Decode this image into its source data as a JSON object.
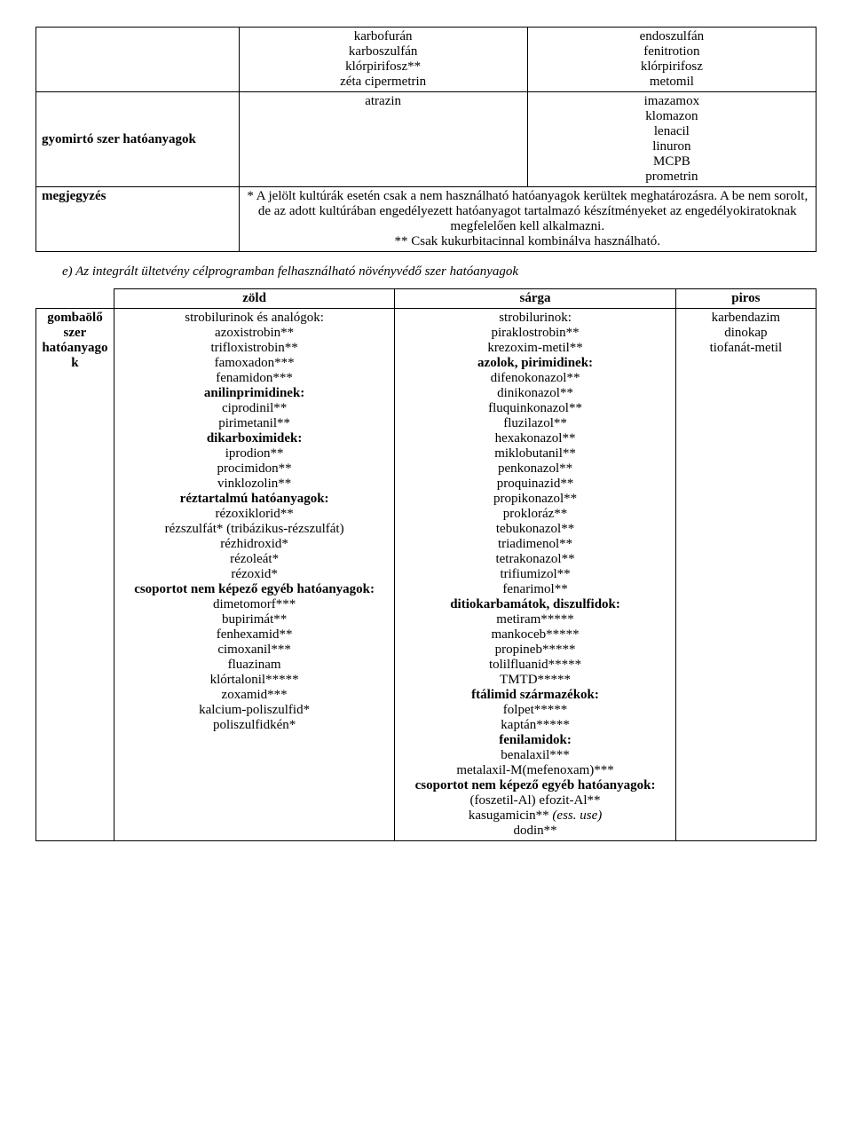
{
  "table1": {
    "row1": {
      "left": "",
      "mid": [
        "karbofurán",
        "karboszulfán",
        "klórpirifosz**",
        "zéta cipermetrin"
      ],
      "right": [
        "endoszulfán",
        "fenitrotion",
        "klórpirifosz",
        "metomil"
      ]
    },
    "row2": {
      "left": "gyomirtó szer hatóanyagok",
      "mid": [
        "atrazin"
      ],
      "right": [
        "imazamox",
        "klomazon",
        "lenacil",
        "linuron",
        "MCPB",
        "prometrin"
      ]
    },
    "row3": {
      "left": "megjegyzés",
      "note_prefix": "* ",
      "note_body1": "A jelölt kultúrák esetén csak a nem használható hatóanyagok kerültek meghatározásra. A be nem sorolt, de az adott kultúrában engedélyezett hatóanyagot tartalmazó készítményeket az engedélyokiratoknak megfelelően kell alkalmazni.",
      "note_body2": "** Csak kukurbitacinnal kombinálva használható."
    }
  },
  "section_title": "e) Az integrált ültetvény célprogramban felhasználható növényvédő szer hatóanyagok",
  "table2": {
    "headers": {
      "zold": "zöld",
      "sarga": "sárga",
      "piros": "piros"
    },
    "left_label": "gombaölő szer hatóanyago k",
    "zold": [
      {
        "t": "strobilurinok és analógok:",
        "b": false
      },
      {
        "t": "azoxistrobin**",
        "b": false
      },
      {
        "t": "trifloxistrobin**",
        "b": false
      },
      {
        "t": "famoxadon***",
        "b": false
      },
      {
        "t": "fenamidon***",
        "b": false
      },
      {
        "t": "anilinprimidinek:",
        "b": true
      },
      {
        "t": "ciprodinil**",
        "b": false
      },
      {
        "t": "pirimetanil**",
        "b": false
      },
      {
        "t": "dikarboximidek:",
        "b": true
      },
      {
        "t": "iprodion**",
        "b": false
      },
      {
        "t": "procimidon**",
        "b": false
      },
      {
        "t": "vinklozolin**",
        "b": false
      },
      {
        "t": "réztartalmú hatóanyagok:",
        "b": true
      },
      {
        "t": "rézoxiklorid**",
        "b": false
      },
      {
        "t": "rézszulfát* (tribázikus-rézszulfát)",
        "b": false
      },
      {
        "t": "rézhidroxid*",
        "b": false
      },
      {
        "t": "rézoleát*",
        "b": false
      },
      {
        "t": "rézoxid*",
        "b": false
      },
      {
        "t": "csoportot nem képező egyéb hatóanyagok:",
        "b": true
      },
      {
        "t": "dimetomorf***",
        "b": false
      },
      {
        "t": "bupirimát**",
        "b": false
      },
      {
        "t": "fenhexamid**",
        "b": false
      },
      {
        "t": "cimoxanil***",
        "b": false
      },
      {
        "t": "fluazinam",
        "b": false
      },
      {
        "t": "klórtalonil*****",
        "b": false
      },
      {
        "t": "zoxamid***",
        "b": false
      },
      {
        "t": "kalcium-poliszulfid*",
        "b": false
      },
      {
        "t": "poliszulfidkén*",
        "b": false
      }
    ],
    "sarga": [
      {
        "t": "strobilurinok:",
        "b": false
      },
      {
        "t": "piraklostrobin**",
        "b": false
      },
      {
        "t": "krezoxim-metil**",
        "b": false
      },
      {
        "t": "azolok, pirimidinek:",
        "b": true
      },
      {
        "t": "difenokonazol**",
        "b": false
      },
      {
        "t": "dinikonazol**",
        "b": false
      },
      {
        "t": "fluquinkonazol**",
        "b": false
      },
      {
        "t": "fluzilazol**",
        "b": false
      },
      {
        "t": "hexakonazol**",
        "b": false
      },
      {
        "t": "miklobutanil**",
        "b": false
      },
      {
        "t": "penkonazol**",
        "b": false
      },
      {
        "t": "proquinazid**",
        "b": false
      },
      {
        "t": "propikonazol**",
        "b": false
      },
      {
        "t": "prokloráz**",
        "b": false
      },
      {
        "t": "tebukonazol**",
        "b": false
      },
      {
        "t": "triadimenol**",
        "b": false
      },
      {
        "t": "tetrakonazol**",
        "b": false
      },
      {
        "t": "trifiumizol**",
        "b": false
      },
      {
        "t": "fenarimol**",
        "b": false
      },
      {
        "t": "ditiokarbamátok, diszulfidok:",
        "b": true
      },
      {
        "t": "metiram*****",
        "b": false
      },
      {
        "t": "mankoceb*****",
        "b": false
      },
      {
        "t": "propineb*****",
        "b": false
      },
      {
        "t": "tolilfluanid*****",
        "b": false
      },
      {
        "t": "TMTD*****",
        "b": false
      },
      {
        "t": "ftálimid származékok:",
        "b": true
      },
      {
        "t": "folpet*****",
        "b": false
      },
      {
        "t": "kaptán*****",
        "b": false
      },
      {
        "t": "fenilamidok:",
        "b": true
      },
      {
        "t": "benalaxil***",
        "b": false
      },
      {
        "t": "metalaxil-M(mefenoxam)***",
        "b": false
      },
      {
        "t": "csoportot nem képező egyéb hatóanyagok:",
        "b": true
      },
      {
        "t": "(foszetil-Al) efozit-Al**",
        "b": false
      },
      {
        "t": "kasugamicin** (ess. use)",
        "b": false,
        "i": true
      },
      {
        "t": "dodin**",
        "b": false
      }
    ],
    "piros": [
      {
        "t": "karbendazim",
        "b": false
      },
      {
        "t": "dinokap",
        "b": false
      },
      {
        "t": "tiofanát-metil",
        "b": false
      }
    ]
  }
}
